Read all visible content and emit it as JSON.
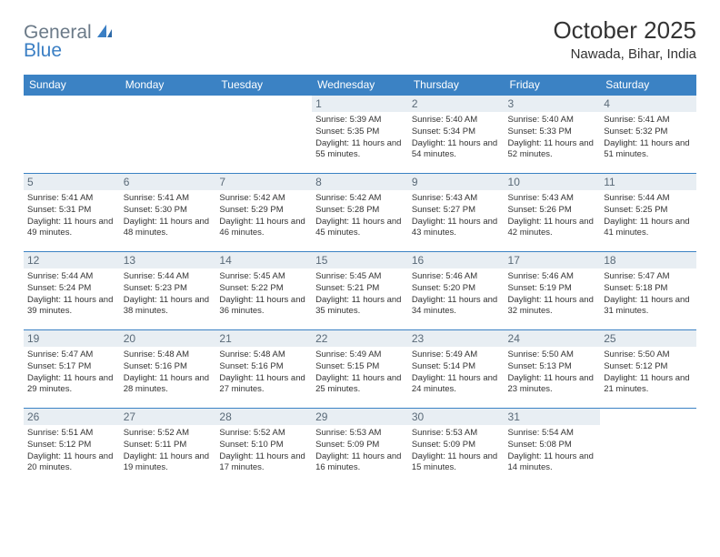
{
  "logo": {
    "general": "General",
    "blue": "Blue"
  },
  "title": "October 2025",
  "location": "Nawada, Bihar, India",
  "colors": {
    "header_bg": "#3b82c4",
    "header_text": "#ffffff",
    "daynum_bg": "#e8eef3",
    "daynum_text": "#5a6a78",
    "border": "#3b82c4",
    "body_text": "#333333",
    "logo_gray": "#6b7a88",
    "logo_blue": "#3b7fc4"
  },
  "weekdays": [
    "Sunday",
    "Monday",
    "Tuesday",
    "Wednesday",
    "Thursday",
    "Friday",
    "Saturday"
  ],
  "weeks": [
    [
      null,
      null,
      null,
      {
        "n": "1",
        "sr": "5:39 AM",
        "ss": "5:35 PM",
        "dl": "11 hours and 55 minutes."
      },
      {
        "n": "2",
        "sr": "5:40 AM",
        "ss": "5:34 PM",
        "dl": "11 hours and 54 minutes."
      },
      {
        "n": "3",
        "sr": "5:40 AM",
        "ss": "5:33 PM",
        "dl": "11 hours and 52 minutes."
      },
      {
        "n": "4",
        "sr": "5:41 AM",
        "ss": "5:32 PM",
        "dl": "11 hours and 51 minutes."
      }
    ],
    [
      {
        "n": "5",
        "sr": "5:41 AM",
        "ss": "5:31 PM",
        "dl": "11 hours and 49 minutes."
      },
      {
        "n": "6",
        "sr": "5:41 AM",
        "ss": "5:30 PM",
        "dl": "11 hours and 48 minutes."
      },
      {
        "n": "7",
        "sr": "5:42 AM",
        "ss": "5:29 PM",
        "dl": "11 hours and 46 minutes."
      },
      {
        "n": "8",
        "sr": "5:42 AM",
        "ss": "5:28 PM",
        "dl": "11 hours and 45 minutes."
      },
      {
        "n": "9",
        "sr": "5:43 AM",
        "ss": "5:27 PM",
        "dl": "11 hours and 43 minutes."
      },
      {
        "n": "10",
        "sr": "5:43 AM",
        "ss": "5:26 PM",
        "dl": "11 hours and 42 minutes."
      },
      {
        "n": "11",
        "sr": "5:44 AM",
        "ss": "5:25 PM",
        "dl": "11 hours and 41 minutes."
      }
    ],
    [
      {
        "n": "12",
        "sr": "5:44 AM",
        "ss": "5:24 PM",
        "dl": "11 hours and 39 minutes."
      },
      {
        "n": "13",
        "sr": "5:44 AM",
        "ss": "5:23 PM",
        "dl": "11 hours and 38 minutes."
      },
      {
        "n": "14",
        "sr": "5:45 AM",
        "ss": "5:22 PM",
        "dl": "11 hours and 36 minutes."
      },
      {
        "n": "15",
        "sr": "5:45 AM",
        "ss": "5:21 PM",
        "dl": "11 hours and 35 minutes."
      },
      {
        "n": "16",
        "sr": "5:46 AM",
        "ss": "5:20 PM",
        "dl": "11 hours and 34 minutes."
      },
      {
        "n": "17",
        "sr": "5:46 AM",
        "ss": "5:19 PM",
        "dl": "11 hours and 32 minutes."
      },
      {
        "n": "18",
        "sr": "5:47 AM",
        "ss": "5:18 PM",
        "dl": "11 hours and 31 minutes."
      }
    ],
    [
      {
        "n": "19",
        "sr": "5:47 AM",
        "ss": "5:17 PM",
        "dl": "11 hours and 29 minutes."
      },
      {
        "n": "20",
        "sr": "5:48 AM",
        "ss": "5:16 PM",
        "dl": "11 hours and 28 minutes."
      },
      {
        "n": "21",
        "sr": "5:48 AM",
        "ss": "5:16 PM",
        "dl": "11 hours and 27 minutes."
      },
      {
        "n": "22",
        "sr": "5:49 AM",
        "ss": "5:15 PM",
        "dl": "11 hours and 25 minutes."
      },
      {
        "n": "23",
        "sr": "5:49 AM",
        "ss": "5:14 PM",
        "dl": "11 hours and 24 minutes."
      },
      {
        "n": "24",
        "sr": "5:50 AM",
        "ss": "5:13 PM",
        "dl": "11 hours and 23 minutes."
      },
      {
        "n": "25",
        "sr": "5:50 AM",
        "ss": "5:12 PM",
        "dl": "11 hours and 21 minutes."
      }
    ],
    [
      {
        "n": "26",
        "sr": "5:51 AM",
        "ss": "5:12 PM",
        "dl": "11 hours and 20 minutes."
      },
      {
        "n": "27",
        "sr": "5:52 AM",
        "ss": "5:11 PM",
        "dl": "11 hours and 19 minutes."
      },
      {
        "n": "28",
        "sr": "5:52 AM",
        "ss": "5:10 PM",
        "dl": "11 hours and 17 minutes."
      },
      {
        "n": "29",
        "sr": "5:53 AM",
        "ss": "5:09 PM",
        "dl": "11 hours and 16 minutes."
      },
      {
        "n": "30",
        "sr": "5:53 AM",
        "ss": "5:09 PM",
        "dl": "11 hours and 15 minutes."
      },
      {
        "n": "31",
        "sr": "5:54 AM",
        "ss": "5:08 PM",
        "dl": "11 hours and 14 minutes."
      },
      null
    ]
  ],
  "labels": {
    "sunrise": "Sunrise:",
    "sunset": "Sunset:",
    "daylight": "Daylight:"
  }
}
